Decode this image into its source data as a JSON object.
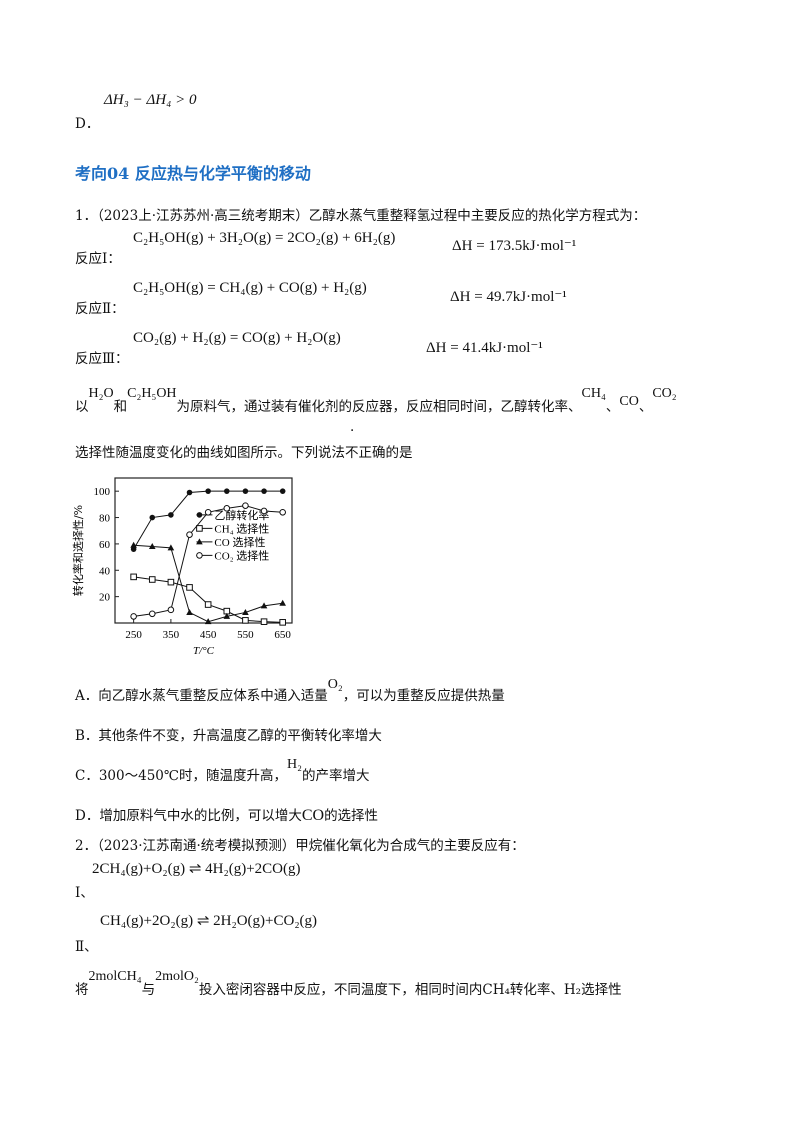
{
  "prev_option_d": {
    "label": "D．",
    "formula": "ΔH₃ − ΔH₄ > 0"
  },
  "section_heading": "考向04  反应热与化学平衡的移动",
  "q1": {
    "stem": "1．（2023上·江苏苏州·高三统考期末）乙醇水蒸气重整释氢过程中主要反应的热化学方程式为：",
    "reactions": [
      {
        "label": "反应Ⅰ：",
        "equation": "C₂H₅OH(g) + 3H₂O(g) = 2CO₂(g) + 6H₂(g)",
        "dh": "ΔH = 173.5kJ·mol⁻¹"
      },
      {
        "label": "反应Ⅱ：",
        "equation": "C₂H₅OH(g) = CH₄(g) + CO(g) + H₂(g)",
        "dh": "ΔH = 49.7kJ·mol⁻¹"
      },
      {
        "label": "反应Ⅲ：",
        "equation": "CO₂(g) + H₂(g) = CO(g) + H₂O(g)",
        "dh": "ΔH = 41.4kJ·mol⁻¹"
      }
    ],
    "desc_a": "以",
    "h2o": "H₂O",
    "desc_b": "和",
    "c2h5oh": "C₂H₅OH",
    "desc_c": "为原料气，通过装有催化剂的反应器，反应相同时间，乙醇转化率、",
    "ch4": "CH₄",
    "co": "CO",
    "co2": "CO₂",
    "sep": "、",
    "desc_d": "选择性随温度变化的曲线如图所示。下列说法",
    "emph": "不",
    "desc_e": "正确的是",
    "options": [
      {
        "label": "A．",
        "text": "向乙醇水蒸气重整反应体系中通入适量",
        "formula": "O₂",
        "tail": "，可以为重整反应提供热量"
      },
      {
        "label": "B．",
        "text": "其他条件不变，升高温度乙醇的平衡转化率增大"
      },
      {
        "label": "C．",
        "text": "300～450℃时，随温度升高，",
        "formula": "H₂",
        "tail": "的产率增大"
      },
      {
        "label": "D．",
        "text": "增加原料气中水的比例，可以增大",
        "formula": "CO",
        "tail": "的选择性"
      }
    ]
  },
  "chart_data": {
    "type": "line",
    "xlabel": "T/°C",
    "ylabel": "转化率和选择性/%",
    "x": [
      250,
      300,
      350,
      400,
      450,
      500,
      550,
      600,
      650
    ],
    "xticks": [
      "250",
      "350",
      "450",
      "550",
      "650"
    ],
    "yticks": [
      "20",
      "40",
      "60",
      "80",
      "100"
    ],
    "xlim": [
      200,
      675
    ],
    "ylim": [
      0,
      110
    ],
    "legend_position": "right-middle",
    "series": [
      {
        "name": "乙醇转化率",
        "marker": "filled-circle",
        "values": [
          56,
          80,
          82,
          99,
          100,
          100,
          100,
          100,
          100
        ]
      },
      {
        "name": "CH₄ 选择性",
        "marker": "open-square",
        "values": [
          35,
          33,
          31,
          27,
          14,
          9,
          2,
          1,
          0.5
        ]
      },
      {
        "name": "CO 选择性",
        "marker": "filled-triangle",
        "values": [
          59,
          58,
          57,
          8,
          1,
          5,
          8,
          13,
          15
        ]
      },
      {
        "name": "CO₂ 选择性",
        "marker": "open-circle",
        "values": [
          5,
          7,
          10,
          67,
          84,
          87,
          89,
          85,
          84
        ]
      }
    ]
  },
  "q2": {
    "stem": "2．（2023·江苏南通·统考模拟预测）甲烷催化氧化为合成气的主要反应有：",
    "reactions": [
      {
        "label": "Ⅰ、",
        "equation": "2CH₄(g)+O₂(g) ⇌ 4H₂(g)+2CO(g)"
      },
      {
        "label": "Ⅱ、",
        "equation": "CH₄(g)+2O₂(g) ⇌ 2H₂O(g)+CO₂(g)"
      }
    ],
    "desc_a": "将",
    "f1": "2molCH₄",
    "desc_b": "与",
    "f2": "2molO₂",
    "desc_c": "投入密闭容器中反应，不同温度下，相同时间内CH₄转化率、H₂选择性"
  }
}
